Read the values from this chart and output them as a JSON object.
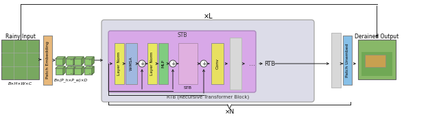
{
  "rainy_label": "Rainy Input",
  "derained_label": "Derained Output",
  "patch_embed_label": "Patch Embedding",
  "patch_unembed_label": "Patch Unembed",
  "patch_embed_color": "#e8b87a",
  "patch_unembed_color": "#87c0e8",
  "xL_label": "×L",
  "xN_label": "×N",
  "rtb_label": "RTB (Recursive Transformer Block)",
  "layer_norm1_label": "Layer Norm",
  "wmsa_label": "W-MSA",
  "layer_norm2_label": "Layer Norm",
  "mlp_label": "MLP",
  "stb_label": "STB",
  "conv_label": "Conv",
  "rtb_short": "RTB",
  "bxhxwxc": "B×H×W×C",
  "bxphxpwxd": "B×(P_h×P_w)×D",
  "ln_color": "#e8e860",
  "wmsa_color": "#a0b8e0",
  "mlp_color": "#80cc80",
  "conv_color": "#e8e060",
  "cube_color": "#90c870",
  "cube_dark": "#70a850",
  "stb_fill": "#d8a8e8",
  "rtb_outer_fill": "#dcdce8",
  "stb_inner_pink": "#e0b0e0"
}
